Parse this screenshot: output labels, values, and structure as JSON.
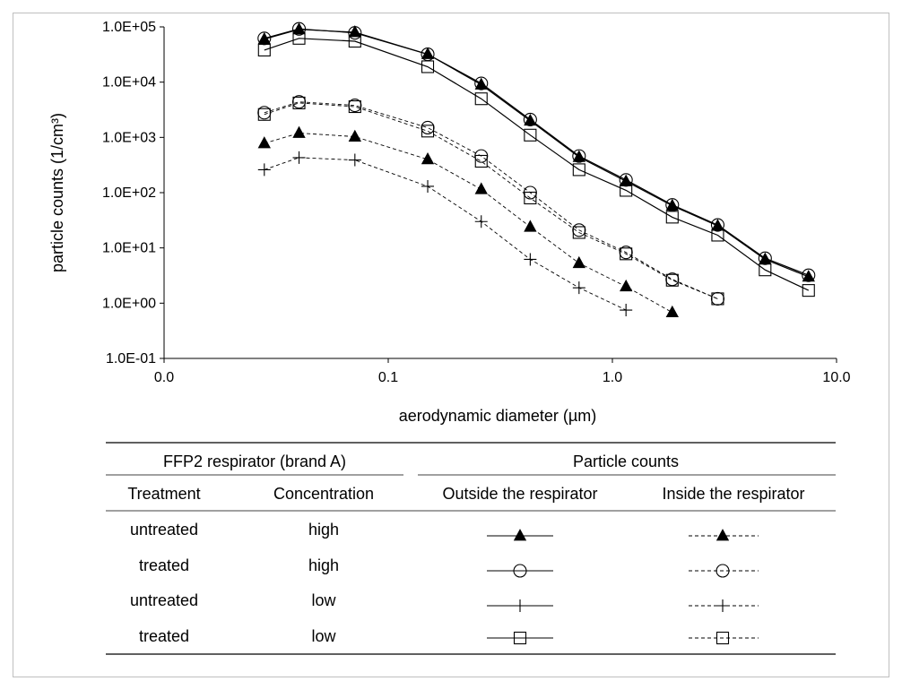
{
  "chart_data": {
    "type": "line",
    "xlabel": "aerodynamic diameter (µm)",
    "ylabel": "particle counts (1/cm³)",
    "xscale": "log",
    "yscale": "log",
    "xlim": [
      0.01,
      10
    ],
    "ylim": [
      0.1,
      100000
    ],
    "x_ticks": [
      0.01,
      0.1,
      1,
      10
    ],
    "x_tick_labels": [
      "0.0",
      "0.1",
      "1.0",
      "10.0"
    ],
    "y_ticks": [
      0.1,
      1,
      10,
      100,
      1000,
      10000,
      100000
    ],
    "y_tick_labels": [
      "1.0E-01",
      "1.0E+00",
      "1.0E+01",
      "1.0E+02",
      "1.0E+03",
      "1.0E+04",
      "1.0E+05"
    ],
    "grid": false,
    "series": [
      {
        "treatment": "untreated",
        "concentration": "high",
        "location": "Outside the respirator",
        "marker": "triangle",
        "line": "solid",
        "x": [
          0.028,
          0.04,
          0.071,
          0.15,
          0.26,
          0.43,
          0.71,
          1.15,
          1.85,
          2.95,
          4.8,
          7.5
        ],
        "y": [
          60000,
          90000,
          80000,
          32000,
          9000,
          2000,
          440,
          160,
          58,
          25,
          6.2,
          3.0
        ]
      },
      {
        "treatment": "treated",
        "concentration": "high",
        "location": "Outside the respirator",
        "marker": "circle",
        "line": "solid",
        "x": [
          0.028,
          0.04,
          0.071,
          0.15,
          0.26,
          0.43,
          0.71,
          1.15,
          1.85,
          2.95,
          4.8,
          7.5
        ],
        "y": [
          62000,
          92000,
          78000,
          32000,
          9500,
          2100,
          460,
          170,
          60,
          26,
          6.5,
          3.2
        ]
      },
      {
        "treatment": "treated",
        "concentration": "low",
        "location": "Outside the respirator",
        "marker": "square",
        "line": "solid",
        "x": [
          0.028,
          0.04,
          0.071,
          0.15,
          0.26,
          0.43,
          0.71,
          1.15,
          1.85,
          2.95,
          4.8,
          7.5
        ],
        "y": [
          38000,
          62000,
          55000,
          19000,
          5000,
          1100,
          260,
          110,
          36,
          17,
          4.0,
          1.7
        ]
      },
      {
        "treatment": "treated",
        "concentration": "high",
        "location": "Inside the respirator",
        "marker": "circle",
        "line": "dashed",
        "x": [
          0.028,
          0.04,
          0.071,
          0.15,
          0.26,
          0.43,
          0.71,
          1.15,
          1.85,
          2.95
        ],
        "y": [
          2800,
          4400,
          3800,
          1500,
          460,
          100,
          21,
          8.3,
          2.7,
          1.2
        ]
      },
      {
        "treatment": "treated",
        "concentration": "low",
        "location": "Inside the respirator",
        "marker": "square",
        "line": "dashed",
        "x": [
          0.028,
          0.04,
          0.071,
          0.15,
          0.26,
          0.43,
          0.71,
          1.15,
          1.85,
          2.95
        ],
        "y": [
          2600,
          4200,
          3600,
          1300,
          370,
          80,
          19,
          7.8,
          2.6,
          1.2
        ]
      },
      {
        "treatment": "untreated",
        "concentration": "high",
        "location": "Inside the respirator",
        "marker": "triangle",
        "line": "dashed",
        "x": [
          0.028,
          0.04,
          0.071,
          0.15,
          0.26,
          0.43,
          0.71,
          1.15,
          1.85
        ],
        "y": [
          780,
          1200,
          1030,
          400,
          115,
          24,
          5.3,
          2.0,
          0.68
        ]
      },
      {
        "treatment": "untreated",
        "concentration": "low",
        "location": "Inside the respirator",
        "marker": "plus",
        "line": "dashed",
        "x": [
          0.028,
          0.04,
          0.071,
          0.15,
          0.26,
          0.43,
          0.71,
          1.15
        ],
        "y": [
          260,
          430,
          390,
          130,
          30,
          6.2,
          1.9,
          0.75
        ]
      }
    ]
  },
  "legend_table": {
    "header_left": "FFP2 respirator (brand A)",
    "header_right": "Particle counts",
    "columns": [
      "Treatment",
      "Concentration",
      "Outside the respirator",
      "Inside the respirator"
    ],
    "rows": [
      {
        "treatment": "untreated",
        "concentration": "high",
        "marker": "triangle"
      },
      {
        "treatment": "treated",
        "concentration": "high",
        "marker": "circle"
      },
      {
        "treatment": "untreated",
        "concentration": "low",
        "marker": "plus"
      },
      {
        "treatment": "treated",
        "concentration": "low",
        "marker": "square"
      }
    ]
  }
}
